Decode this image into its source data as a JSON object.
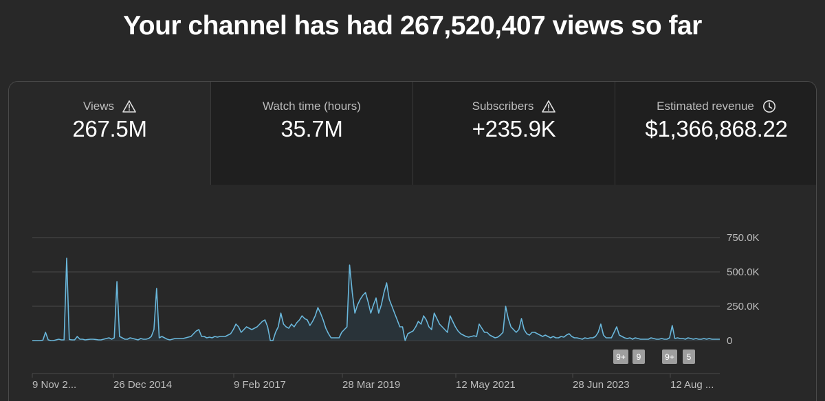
{
  "headline": "Your channel has had 267,520,407 views so far",
  "tabs": [
    {
      "label": "Views",
      "value": "267.5M",
      "icon": "warning-icon",
      "active": true
    },
    {
      "label": "Watch time (hours)",
      "value": "35.7M",
      "icon": "",
      "active": false
    },
    {
      "label": "Subscribers",
      "value": "+235.9K",
      "icon": "warning-icon",
      "active": false
    },
    {
      "label": "Estimated revenue",
      "value": "$1,366,868.22",
      "icon": "clock-icon",
      "active": false
    }
  ],
  "colors": {
    "line": "#6ab7db",
    "fill": "#2a3a44",
    "grid": "#4a4a4a",
    "background": "#282828"
  },
  "markers": [
    "9+",
    "9",
    "9+",
    "5"
  ],
  "chart_data": {
    "type": "line",
    "series": [
      {
        "values": [
          0,
          0,
          0,
          0,
          3,
          60,
          5,
          0,
          0,
          5,
          10,
          5,
          5,
          600,
          8,
          5,
          5,
          30,
          10,
          10,
          5,
          8,
          10,
          10,
          8,
          5,
          5,
          10,
          15,
          20,
          10,
          20,
          430,
          30,
          20,
          10,
          10,
          20,
          15,
          10,
          5,
          15,
          10,
          10,
          15,
          30,
          80,
          380,
          20,
          30,
          20,
          10,
          5,
          10,
          15,
          15,
          15,
          15,
          20,
          25,
          30,
          50,
          70,
          80,
          30,
          30,
          20,
          25,
          20,
          30,
          25,
          30,
          30,
          30,
          40,
          50,
          80,
          120,
          100,
          60,
          80,
          100,
          90,
          80,
          90,
          100,
          120,
          140,
          150,
          100,
          0,
          0,
          60,
          100,
          200,
          120,
          100,
          90,
          120,
          100,
          130,
          150,
          180,
          160,
          150,
          110,
          140,
          180,
          240,
          200,
          150,
          90,
          50,
          20,
          20,
          20,
          20,
          60,
          80,
          100,
          550,
          350,
          200,
          260,
          300,
          330,
          350,
          280,
          200,
          260,
          310,
          200,
          260,
          350,
          420,
          300,
          250,
          200,
          150,
          100,
          100,
          0,
          50,
          60,
          70,
          100,
          140,
          120,
          180,
          150,
          100,
          80,
          200,
          160,
          120,
          100,
          80,
          60,
          180,
          140,
          100,
          70,
          50,
          40,
          30,
          25,
          30,
          35,
          30,
          120,
          90,
          60,
          60,
          40,
          30,
          20,
          25,
          40,
          60,
          250,
          160,
          100,
          80,
          60,
          80,
          160,
          80,
          50,
          40,
          60,
          60,
          50,
          40,
          30,
          40,
          30,
          20,
          30,
          20,
          20,
          30,
          25,
          40,
          50,
          30,
          20,
          20,
          15,
          10,
          20,
          15,
          20,
          20,
          30,
          60,
          120,
          40,
          20,
          20,
          20,
          60,
          100,
          40,
          30,
          20,
          15,
          20,
          10,
          20,
          15,
          10,
          10,
          10,
          10,
          20,
          15,
          10,
          10,
          15,
          10,
          10,
          20,
          110,
          15,
          20,
          15,
          15,
          10,
          20,
          15,
          10,
          15,
          10,
          10,
          15,
          10,
          15,
          10,
          10,
          10,
          10
        ]
      }
    ],
    "xticks": [
      "9 Nov 2...",
      "26 Dec 2014",
      "9 Feb 2017",
      "28 Mar 2019",
      "12 May 2021",
      "28 Jun 2023",
      "12 Aug ..."
    ],
    "yticks": [
      "750.0K",
      "500.0K",
      "250.0K",
      "0"
    ],
    "ylim": [
      0,
      750
    ]
  }
}
